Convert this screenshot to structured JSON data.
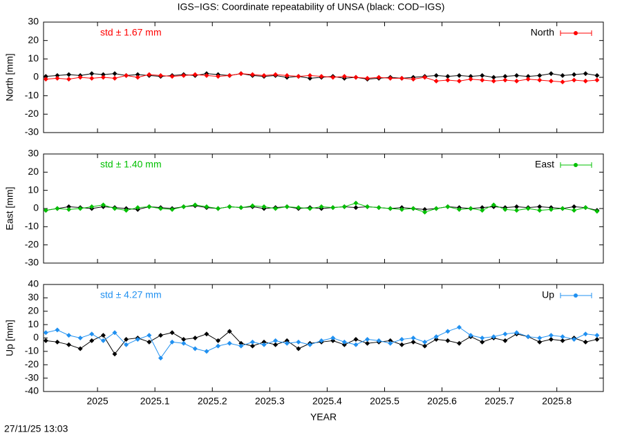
{
  "title": "IGS−IGS: Coordinate repeatability of UNSA (black: COD−IGS)",
  "timestamp": "27/11/25 13:03",
  "chart_data": [
    {
      "type": "line",
      "ylabel": "North [mm]",
      "annotation": "std ± 1.67 mm",
      "annotation_color": "#ff0000",
      "xlim": [
        2024.906,
        2025.881
      ],
      "xticks": [
        2025,
        2025.1,
        2025.2,
        2025.3,
        2025.4,
        2025.5,
        2025.6,
        2025.7,
        2025.8
      ],
      "ylim": [
        -30,
        30
      ],
      "yticks": [
        -30,
        -20,
        -10,
        0,
        10,
        20,
        30
      ],
      "x": [
        2024.91,
        2024.93,
        2024.95,
        2024.97,
        2024.99,
        2025.01,
        2025.03,
        2025.05,
        2025.07,
        2025.09,
        2025.11,
        2025.13,
        2025.15,
        2025.17,
        2025.19,
        2025.21,
        2025.23,
        2025.25,
        2025.27,
        2025.29,
        2025.31,
        2025.33,
        2025.35,
        2025.37,
        2025.39,
        2025.41,
        2025.43,
        2025.45,
        2025.47,
        2025.49,
        2025.51,
        2025.53,
        2025.55,
        2025.57,
        2025.59,
        2025.61,
        2025.63,
        2025.65,
        2025.67,
        2025.69,
        2025.71,
        2025.73,
        2025.75,
        2025.77,
        2025.79,
        2025.81,
        2025.83,
        2025.85,
        2025.87
      ],
      "series": [
        {
          "color": "#000000",
          "values": [
            0.5,
            1,
            1.5,
            1,
            2,
            1.5,
            2,
            1,
            1.5,
            1,
            0.5,
            1,
            1.5,
            1,
            2,
            1.5,
            1,
            2,
            1,
            0.5,
            1,
            0,
            0.5,
            -0.5,
            0,
            0.5,
            -0.5,
            0,
            -1,
            -0.5,
            0,
            -0.5,
            0,
            0.5,
            1,
            0.5,
            1,
            0.5,
            1,
            0,
            0.5,
            1,
            0.5,
            1,
            2,
            1,
            1.5,
            2,
            1
          ]
        },
        {
          "name": "North",
          "color": "#ff0000",
          "values": [
            -1,
            -0.5,
            -1,
            0,
            -0.5,
            0,
            -0.5,
            1,
            0,
            1.5,
            1,
            0.5,
            1,
            1.5,
            1,
            0.5,
            1,
            2,
            1.5,
            1,
            1.5,
            1,
            0.5,
            1,
            0.5,
            0,
            0.5,
            0,
            -0.5,
            0,
            -0.5,
            -0.5,
            -1,
            0,
            -2,
            -1.5,
            -2,
            -1,
            -1.5,
            -2,
            -1.5,
            -2,
            -1,
            -1.5,
            -2,
            -2.5,
            -1.5,
            -2,
            -1.5
          ]
        }
      ]
    },
    {
      "type": "line",
      "ylabel": "East [mm]",
      "annotation": "std ± 1.40 mm",
      "annotation_color": "#00c000",
      "xlim": [
        2024.906,
        2025.881
      ],
      "xticks": [
        2025,
        2025.1,
        2025.2,
        2025.3,
        2025.4,
        2025.5,
        2025.6,
        2025.7,
        2025.8
      ],
      "ylim": [
        -30,
        30
      ],
      "yticks": [
        -30,
        -20,
        -10,
        0,
        10,
        20,
        30
      ],
      "x": [
        2024.91,
        2024.93,
        2024.95,
        2024.97,
        2024.99,
        2025.01,
        2025.03,
        2025.05,
        2025.07,
        2025.09,
        2025.11,
        2025.13,
        2025.15,
        2025.17,
        2025.19,
        2025.21,
        2025.23,
        2025.25,
        2025.27,
        2025.29,
        2025.31,
        2025.33,
        2025.35,
        2025.37,
        2025.39,
        2025.41,
        2025.43,
        2025.45,
        2025.47,
        2025.49,
        2025.51,
        2025.53,
        2025.55,
        2025.57,
        2025.59,
        2025.61,
        2025.63,
        2025.65,
        2025.67,
        2025.69,
        2025.71,
        2025.73,
        2025.75,
        2025.77,
        2025.79,
        2025.81,
        2025.83,
        2025.85,
        2025.87
      ],
      "series": [
        {
          "color": "#000000",
          "values": [
            -1,
            0,
            1,
            0.5,
            0,
            1,
            0.5,
            0,
            -0.5,
            1,
            0.5,
            0,
            1,
            1.5,
            0.5,
            0,
            1,
            0.5,
            1,
            0,
            0.5,
            1,
            0,
            0.5,
            0,
            0.5,
            1,
            0.5,
            1,
            0.5,
            0,
            0.5,
            0,
            -0.5,
            0,
            1,
            0.5,
            0,
            0.5,
            1,
            0.5,
            1,
            0.5,
            1,
            0.5,
            0,
            1,
            0.5,
            -1
          ]
        },
        {
          "name": "East",
          "color": "#00c000",
          "values": [
            -1,
            0,
            -0.5,
            0,
            1,
            2,
            0,
            -1,
            0.5,
            1,
            0,
            -0.5,
            1,
            2,
            1,
            0,
            1,
            0.5,
            1.5,
            1,
            0,
            1,
            0.5,
            0,
            1,
            0.5,
            1,
            3,
            1,
            0.5,
            0,
            -0.5,
            0,
            -2,
            0,
            1,
            -0.5,
            0,
            -1,
            2,
            -0.5,
            -1,
            0,
            -1,
            -0.5,
            0,
            -1,
            0.5,
            -1.5
          ]
        }
      ]
    },
    {
      "type": "line",
      "ylabel": "Up [mm]",
      "xlabel": "YEAR",
      "annotation": "std ± 4.27 mm",
      "annotation_color": "#2090f0",
      "xlim": [
        2024.906,
        2025.881
      ],
      "xticks": [
        2025,
        2025.1,
        2025.2,
        2025.3,
        2025.4,
        2025.5,
        2025.6,
        2025.7,
        2025.8
      ],
      "ylim": [
        -40,
        40
      ],
      "yticks": [
        -40,
        -30,
        -20,
        -10,
        0,
        10,
        20,
        30,
        40
      ],
      "x": [
        2024.91,
        2024.93,
        2024.95,
        2024.97,
        2024.99,
        2025.01,
        2025.03,
        2025.05,
        2025.07,
        2025.09,
        2025.11,
        2025.13,
        2025.15,
        2025.17,
        2025.19,
        2025.21,
        2025.23,
        2025.25,
        2025.27,
        2025.29,
        2025.31,
        2025.33,
        2025.35,
        2025.37,
        2025.39,
        2025.41,
        2025.43,
        2025.45,
        2025.47,
        2025.49,
        2025.51,
        2025.53,
        2025.55,
        2025.57,
        2025.59,
        2025.61,
        2025.63,
        2025.65,
        2025.67,
        2025.69,
        2025.71,
        2025.73,
        2025.75,
        2025.77,
        2025.79,
        2025.81,
        2025.83,
        2025.85,
        2025.87
      ],
      "series": [
        {
          "color": "#000000",
          "values": [
            -2,
            -3,
            -5,
            -8,
            -2,
            2,
            -12,
            -1,
            0,
            -3,
            2,
            4,
            -1,
            0,
            3,
            -2,
            5,
            -4,
            -6,
            -3,
            -5,
            -2,
            -8,
            -4,
            -3,
            -2,
            -5,
            -1,
            -4,
            -3,
            -2,
            -5,
            -3,
            -6,
            -1,
            -2,
            -4,
            1,
            -3,
            0,
            -2,
            3,
            1,
            -3,
            -1,
            -2,
            0,
            -3,
            -1
          ]
        },
        {
          "name": "Up",
          "color": "#2090f0",
          "values": [
            4,
            6,
            2,
            0,
            3,
            -2,
            4,
            -5,
            -1,
            2,
            -15,
            -3,
            -4,
            -8,
            -10,
            -6,
            -4,
            -6,
            -3,
            -5,
            -2,
            -4,
            -3,
            -5,
            -2,
            0,
            -3,
            -5,
            -1,
            -2,
            -4,
            -1,
            0,
            -3,
            1,
            5,
            8,
            2,
            0,
            1,
            3,
            4,
            1,
            0,
            2,
            1,
            -1,
            3,
            2
          ]
        }
      ]
    }
  ]
}
